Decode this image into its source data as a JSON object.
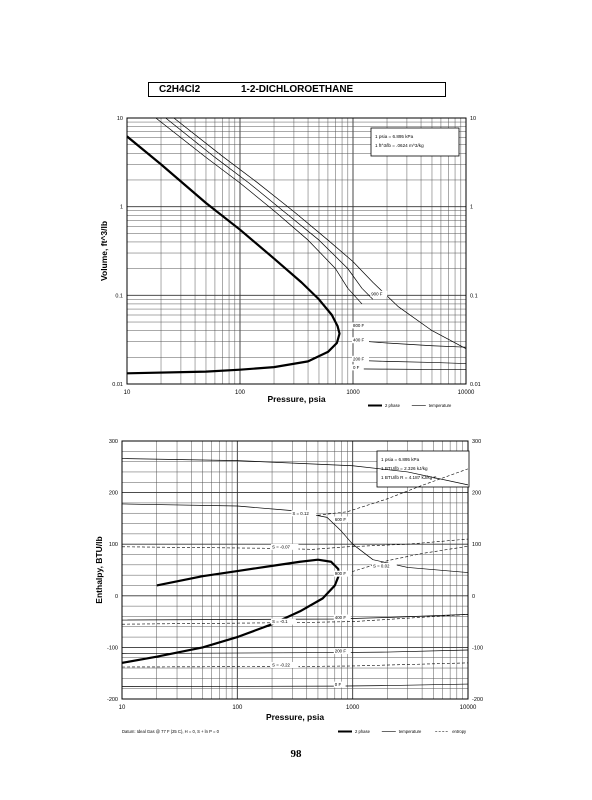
{
  "header": {
    "formula": "C2H4Cl2",
    "name": "1-2-DICHLOROETHANE"
  },
  "page_number": "98",
  "chart_data": [
    {
      "type": "line",
      "xscale": "log",
      "yscale": "log",
      "xlim": [
        10,
        10000
      ],
      "ylim": [
        0.01,
        10
      ],
      "xlabel": "Pressure, psia",
      "ylabel": "Volume, ft^3/lb",
      "grid": true,
      "xticks": [
        "10",
        "100",
        "1000",
        "10000"
      ],
      "yticks": [
        "0.01",
        "0.1",
        "1",
        "10"
      ],
      "conversion_box": [
        "1 psia = 6.895 kPa",
        "1 ft^3/lb = .0624 m^3/kg"
      ],
      "legend_labels": [
        "2 phase",
        "temperature"
      ],
      "series": [
        {
          "name": "2 phase",
          "style": "bold",
          "points": [
            [
              10,
              6.2
            ],
            [
              20,
              3.0
            ],
            [
              50,
              1.1
            ],
            [
              100,
              0.55
            ],
            [
              200,
              0.26
            ],
            [
              350,
              0.14
            ],
            [
              500,
              0.09
            ],
            [
              650,
              0.06
            ],
            [
              730,
              0.045
            ],
            [
              760,
              0.037
            ],
            [
              720,
              0.029
            ],
            [
              600,
              0.023
            ],
            [
              400,
              0.018
            ],
            [
              200,
              0.0155
            ],
            [
              100,
              0.0145
            ],
            [
              50,
              0.0138
            ],
            [
              10,
              0.0132
            ]
          ]
        },
        {
          "name": "600 F",
          "points": [
            [
              18,
              10
            ],
            [
              50,
              3.6
            ],
            [
              100,
              1.85
            ],
            [
              200,
              0.9
            ],
            [
              400,
              0.42
            ],
            [
              700,
              0.2
            ],
            [
              900,
              0.12
            ],
            [
              1200,
              0.08
            ]
          ]
        },
        {
          "name": "800 F",
          "points": [
            [
              22,
              10
            ],
            [
              60,
              3.6
            ],
            [
              120,
              1.85
            ],
            [
              240,
              0.9
            ],
            [
              500,
              0.42
            ],
            [
              900,
              0.2
            ],
            [
              1200,
              0.12
            ],
            [
              1500,
              0.09
            ]
          ]
        },
        {
          "name": "900 F",
          "points": [
            [
              26,
              10
            ],
            [
              70,
              3.7
            ],
            [
              140,
              1.9
            ],
            [
              300,
              0.88
            ],
            [
              600,
              0.42
            ],
            [
              1000,
              0.24
            ],
            [
              1500,
              0.14
            ],
            [
              2500,
              0.075
            ],
            [
              5000,
              0.04
            ],
            [
              10000,
              0.025
            ]
          ]
        },
        {
          "name": "400 F",
          "points": [
            [
              1000,
              0.031
            ],
            [
              2000,
              0.029
            ],
            [
              5000,
              0.027
            ],
            [
              10000,
              0.026
            ]
          ]
        },
        {
          "name": "200 F",
          "points": [
            [
              1000,
              0.0185
            ],
            [
              2000,
              0.018
            ],
            [
              5000,
              0.0175
            ],
            [
              10000,
              0.017
            ]
          ]
        },
        {
          "name": "0 F",
          "points": [
            [
              1000,
              0.0148
            ],
            [
              2000,
              0.0147
            ],
            [
              5000,
              0.0146
            ],
            [
              10000,
              0.0145
            ]
          ]
        }
      ],
      "annotations": [
        {
          "text": "900 F",
          "x": 1450,
          "y": 0.1
        },
        {
          "text": "800 F",
          "x": 1000,
          "y": 0.044
        },
        {
          "text": "400 F",
          "x": 1000,
          "y": 0.03
        },
        {
          "text": "200 F",
          "x": 1000,
          "y": 0.0185
        },
        {
          "text": "0 F",
          "x": 1000,
          "y": 0.0148
        }
      ]
    },
    {
      "type": "line",
      "xscale": "log",
      "yscale": "linear",
      "xlim": [
        10,
        10000
      ],
      "ylim": [
        -200,
        300
      ],
      "xlabel": "Pressure, psia",
      "ylabel": "Enthalpy, BTU/lb",
      "grid": true,
      "xticks": [
        "10",
        "100",
        "1000",
        "10000"
      ],
      "yticks": [
        "300",
        "200",
        "100",
        "0",
        "-100",
        "-200"
      ],
      "conversion_box": [
        "1 psia = 6.895 kPa",
        "1 BTU/lb = 2.326 kJ/kg",
        "1 BTU/lb R = 4.187 kJ/kg K"
      ],
      "legend_labels": [
        "2 phase",
        "temperature",
        "entropy"
      ],
      "footnote": "Datum: Ideal Gas @ 77 F (25 C), H = 0, S + ln P = 0",
      "series": [
        {
          "name": "2 phase",
          "style": "bold",
          "points": [
            [
              20,
              20
            ],
            [
              50,
              38
            ],
            [
              100,
              48
            ],
            [
              200,
              58
            ],
            [
              350,
              66
            ],
            [
              500,
              70
            ],
            [
              650,
              66
            ],
            [
              750,
              52
            ],
            [
              760,
              40
            ],
            [
              700,
              20
            ],
            [
              550,
              -5
            ],
            [
              350,
              -30
            ],
            [
              200,
              -55
            ],
            [
              100,
              -80
            ],
            [
              50,
              -100
            ],
            [
              20,
              -118
            ],
            [
              10,
              -130
            ]
          ]
        },
        {
          "name": "600 F",
          "style": "temperature",
          "points": [
            [
              10,
              178
            ],
            [
              100,
              174
            ],
            [
              300,
              165
            ],
            [
              600,
              152
            ],
            [
              800,
              125
            ],
            [
              1000,
              100
            ],
            [
              1500,
              70
            ],
            [
              3000,
              55
            ],
            [
              10000,
              45
            ]
          ]
        },
        {
          "name": "900 F",
          "style": "temperature",
          "points": [
            [
              10,
              266
            ],
            [
              100,
              262
            ],
            [
              1000,
              252
            ],
            [
              3000,
              240
            ],
            [
              10000,
              215
            ]
          ]
        },
        {
          "name": "S = 0.12",
          "style": "entropy",
          "points": [
            [
              500,
              156
            ],
            [
              900,
              163
            ],
            [
              2000,
              188
            ],
            [
              4000,
              214
            ],
            [
              10000,
              246
            ]
          ]
        },
        {
          "name": "S = 0.02",
          "style": "entropy",
          "points": [
            [
              900,
              44
            ],
            [
              2000,
              68
            ],
            [
              4000,
              82
            ],
            [
              10000,
              96
            ]
          ]
        },
        {
          "name": "400 F",
          "style": "temperature",
          "points": [
            [
              10,
              -47
            ],
            [
              700,
              -45
            ],
            [
              2000,
              -42
            ],
            [
              10000,
              -36
            ]
          ]
        },
        {
          "name": "200 F",
          "style": "temperature",
          "points": [
            [
              10,
              -112
            ],
            [
              700,
              -110
            ],
            [
              2000,
              -109
            ],
            [
              10000,
              -105
            ]
          ]
        },
        {
          "name": "0 F",
          "style": "temperature",
          "points": [
            [
              10,
              -176
            ],
            [
              700,
              -175
            ],
            [
              2000,
              -174
            ],
            [
              10000,
              -171
            ]
          ]
        },
        {
          "name": "S = -0.1",
          "style": "entropy",
          "points": [
            [
              10,
              -55
            ],
            [
              300,
              -52
            ],
            [
              1000,
              -50
            ],
            [
              10000,
              -36
            ]
          ]
        },
        {
          "name": "S = -0.22",
          "style": "entropy",
          "points": [
            [
              10,
              -138
            ],
            [
              300,
              -137
            ],
            [
              1000,
              -136
            ],
            [
              10000,
              -130
            ]
          ]
        },
        {
          "name": "S = -0.07",
          "style": "entropy",
          "points": [
            [
              10,
              95
            ],
            [
              200,
              92
            ],
            [
              450,
              90
            ],
            [
              900,
              95
            ],
            [
              3000,
              100
            ],
            [
              10000,
              110
            ]
          ]
        }
      ],
      "annotations": [
        {
          "text": "S = 0.12",
          "x": 300,
          "y": 157
        },
        {
          "text": "600 F",
          "x": 700,
          "y": 145
        },
        {
          "text": "S = -0.07",
          "x": 200,
          "y": 92
        },
        {
          "text": "S = 0.02",
          "x": 1500,
          "y": 55
        },
        {
          "text": "900 F",
          "x": 700,
          "y": 40
        },
        {
          "text": "400 F",
          "x": 700,
          "y": -45
        },
        {
          "text": "S = -0.1",
          "x": 200,
          "y": -53
        },
        {
          "text": "200 F",
          "x": 700,
          "y": -110
        },
        {
          "text": "S = -0.22",
          "x": 200,
          "y": -137
        },
        {
          "text": "0 F",
          "x": 700,
          "y": -175
        }
      ]
    }
  ]
}
